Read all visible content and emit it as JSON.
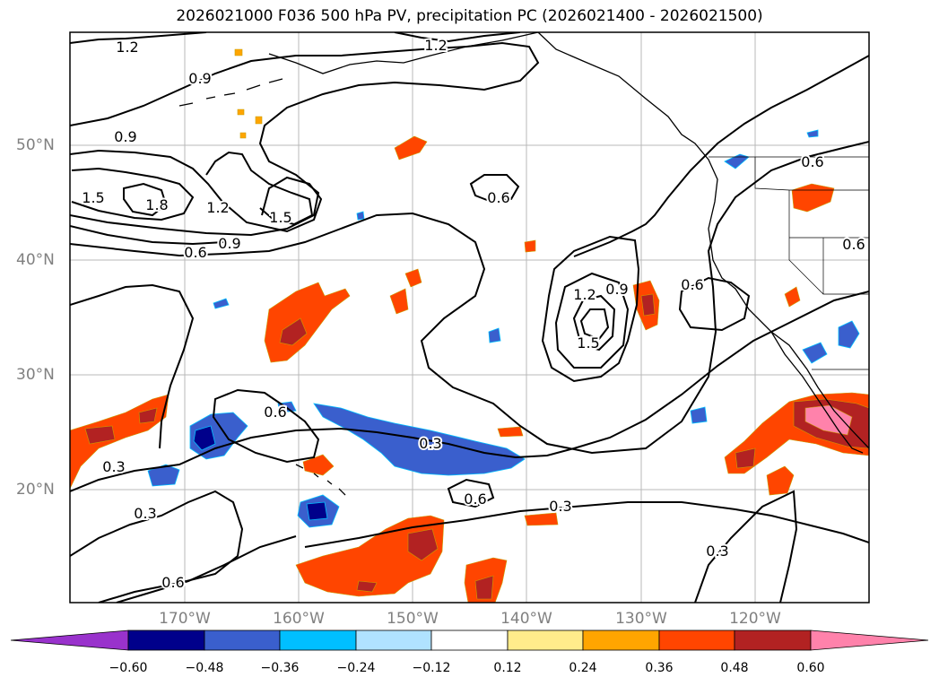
{
  "title": "2026021000 F036 500 hPa PV, precipitation PC (2026021400 - 2026021500)",
  "lat_labels": [
    "50°N",
    "40°N",
    "30°N",
    "20°N"
  ],
  "lon_labels": [
    "170°W",
    "160°W",
    "150°W",
    "140°W",
    "130°W",
    "120°W"
  ],
  "contour_labels": [
    "1.2",
    "1.2",
    "0.9",
    "0.9",
    "1.5",
    "1.8",
    "1.2",
    "1.5",
    "0.9",
    "0.6",
    "0.6",
    "0.6",
    "1.2",
    "0.9",
    "1.5",
    "0.6",
    "0.6",
    "0.6",
    "0.3",
    "0.3",
    "0.6",
    "0.3",
    "0.3",
    "0.6",
    "0.3"
  ],
  "colorbar": {
    "labels": [
      "−0.60",
      "−0.48",
      "−0.36",
      "−0.24",
      "−0.12",
      "0.12",
      "0.24",
      "0.36",
      "0.48",
      "0.60"
    ],
    "colors": [
      "#9932CC",
      "#00008B",
      "#3A5FCD",
      "#00BFFF",
      "#B0E2FF",
      "#FFFFFF",
      "#FFEC8B",
      "#FFA500",
      "#FF4500",
      "#B22222",
      "#FF82AB"
    ]
  }
}
